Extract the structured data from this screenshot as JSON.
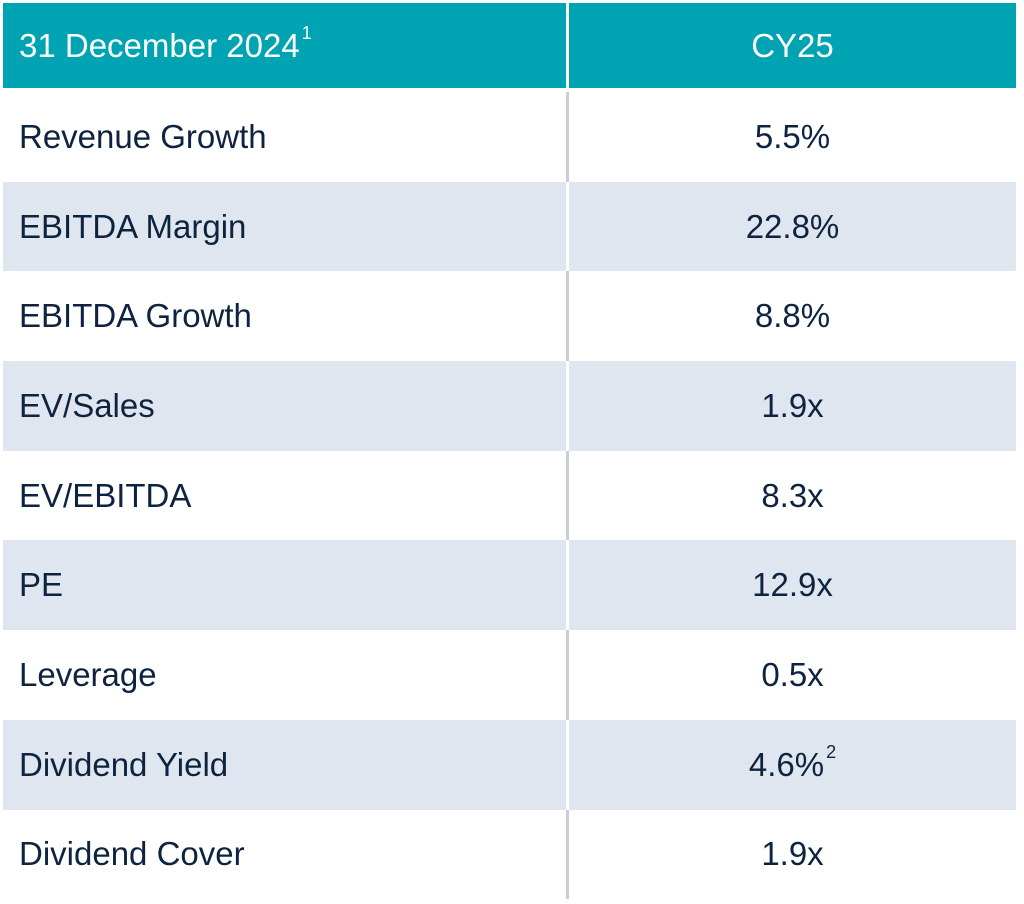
{
  "header": {
    "date_label": "31 December 2024",
    "date_footnote": "1",
    "period_label": "CY25"
  },
  "rows": [
    {
      "metric": "Revenue Growth",
      "value": "5.5%",
      "footnote": ""
    },
    {
      "metric": "EBITDA Margin",
      "value": "22.8%",
      "footnote": ""
    },
    {
      "metric": "EBITDA Growth",
      "value": "8.8%",
      "footnote": ""
    },
    {
      "metric": "EV/Sales",
      "value": "1.9x",
      "footnote": ""
    },
    {
      "metric": "EV/EBITDA",
      "value": "8.3x",
      "footnote": ""
    },
    {
      "metric": "PE",
      "value": "12.9x",
      "footnote": ""
    },
    {
      "metric": "Leverage",
      "value": "0.5x",
      "footnote": ""
    },
    {
      "metric": "Dividend Yield",
      "value": "4.6%",
      "footnote": "2"
    },
    {
      "metric": "Dividend Cover",
      "value": "1.9x",
      "footnote": ""
    }
  ],
  "colors": {
    "header_bg": "#00a3b1",
    "header_text": "#ffffff",
    "row_alt_bg": "#e0e6ef",
    "body_text": "#0d2340"
  }
}
